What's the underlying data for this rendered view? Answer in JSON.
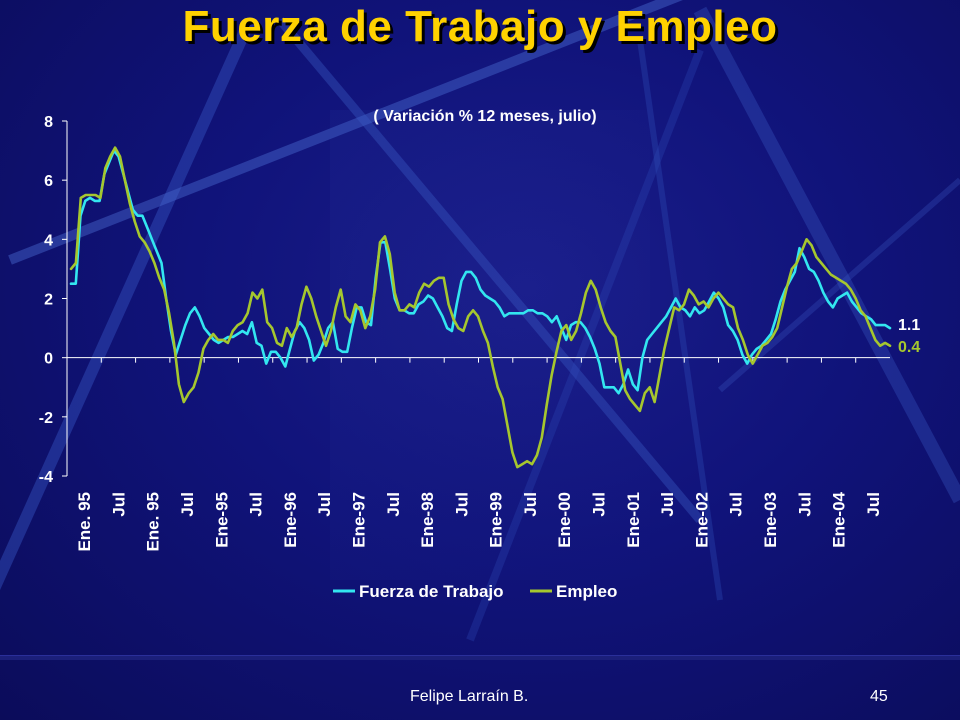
{
  "slide": {
    "title": "Fuerza de Trabajo y Empleo",
    "footer_author": "Felipe Larraín B.",
    "page_number": "45"
  },
  "colors": {
    "background": "#10137a",
    "title": "#ffd200",
    "fuerza": "#33e6f0",
    "empleo": "#a6c72e",
    "text": "#ffffff"
  },
  "chart_data": {
    "type": "line",
    "title": "( Variación % 12 meses, julio)",
    "xlabel": "",
    "ylabel": "",
    "ylim": [
      -4,
      8
    ],
    "yticks": [
      "8",
      "6",
      "4",
      "2",
      "0",
      "-2",
      "-4"
    ],
    "x_tick_labels": [
      "Ene. 95",
      "Jul",
      "Ene. 95",
      "Jul",
      "Ene-95",
      "Jul",
      "Ene-96",
      "Jul",
      "Ene-97",
      "Jul",
      "Ene-98",
      "Jul",
      "Ene-99",
      "Jul",
      "Ene-00",
      "Jul",
      "Ene-01",
      "Jul",
      "Ene-02",
      "Jul",
      "Ene-03",
      "Jul",
      "Ene-04",
      "Jul"
    ],
    "legend_position": "bottom",
    "end_labels": [
      "1.1",
      "0.4"
    ],
    "series": [
      {
        "name": "Fuerza de Trabajo",
        "color": "#33e6f0",
        "values": [
          2.5,
          2.5,
          4.8,
          5.3,
          5.4,
          5.3,
          5.3,
          6.2,
          6.6,
          7.0,
          6.8,
          6.2,
          5.6,
          5.0,
          4.8,
          4.8,
          4.4,
          4.0,
          3.6,
          3.2,
          2.0,
          0.9,
          0.1,
          0.6,
          1.1,
          1.5,
          1.7,
          1.4,
          1.0,
          0.8,
          0.6,
          0.5,
          0.6,
          0.7,
          0.7,
          0.8,
          0.9,
          0.8,
          1.2,
          0.5,
          0.4,
          -0.2,
          0.2,
          0.2,
          0.0,
          -0.3,
          0.3,
          0.9,
          1.2,
          1.0,
          0.6,
          -0.1,
          0.1,
          0.5,
          1.0,
          1.2,
          0.3,
          0.2,
          0.2,
          1.0,
          1.7,
          1.7,
          1.2,
          1.1,
          2.7,
          3.9,
          3.9,
          3.0,
          2.0,
          1.6,
          1.6,
          1.5,
          1.5,
          1.8,
          1.9,
          2.1,
          2.0,
          1.7,
          1.4,
          1.0,
          0.9,
          1.8,
          2.6,
          2.9,
          2.9,
          2.7,
          2.3,
          2.1,
          2.0,
          1.9,
          1.7,
          1.4,
          1.5,
          1.5,
          1.5,
          1.5,
          1.6,
          1.6,
          1.5,
          1.5,
          1.4,
          1.2,
          1.4,
          1.0,
          0.6,
          1.1,
          1.2,
          1.2,
          1.0,
          0.7,
          0.3,
          -0.2,
          -1.0,
          -1.0,
          -1.0,
          -1.2,
          -0.9,
          -0.4,
          -0.9,
          -1.1,
          0.0,
          0.6,
          0.8,
          1.0,
          1.2,
          1.4,
          1.7,
          2.0,
          1.7,
          1.6,
          1.4,
          1.7,
          1.5,
          1.6,
          1.9,
          2.2,
          2.0,
          1.7,
          1.1,
          0.9,
          0.6,
          0.1,
          -0.2,
          0.1,
          0.3,
          0.4,
          0.6,
          0.8,
          1.3,
          1.9,
          2.3,
          2.6,
          2.9,
          3.7,
          3.4,
          3.0,
          2.9,
          2.6,
          2.2,
          1.9,
          1.7,
          2.0,
          2.1,
          2.2,
          1.9,
          1.7,
          1.5,
          1.4,
          1.3,
          1.1,
          1.1,
          1.1,
          1.0
        ]
      },
      {
        "name": "Empleo",
        "color": "#a6c72e",
        "values": [
          3.0,
          3.2,
          5.4,
          5.5,
          5.5,
          5.5,
          5.4,
          6.4,
          6.8,
          7.1,
          6.8,
          6.0,
          5.2,
          4.6,
          4.1,
          3.9,
          3.6,
          3.2,
          2.7,
          2.3,
          1.5,
          0.5,
          -0.9,
          -1.5,
          -1.2,
          -1.0,
          -0.5,
          0.3,
          0.6,
          0.8,
          0.6,
          0.6,
          0.5,
          0.9,
          1.1,
          1.2,
          1.5,
          2.2,
          2.0,
          2.3,
          1.2,
          1.0,
          0.5,
          0.4,
          1.0,
          0.7,
          1.0,
          1.8,
          2.4,
          2.0,
          1.4,
          0.9,
          0.4,
          0.9,
          1.7,
          2.3,
          1.4,
          1.2,
          1.8,
          1.6,
          1.0,
          1.4,
          2.3,
          3.9,
          4.1,
          3.5,
          2.2,
          1.6,
          1.6,
          1.8,
          1.7,
          2.2,
          2.5,
          2.4,
          2.6,
          2.7,
          2.7,
          1.8,
          1.3,
          1.0,
          0.9,
          1.4,
          1.6,
          1.4,
          0.9,
          0.5,
          -0.3,
          -1.0,
          -1.4,
          -2.3,
          -3.2,
          -3.7,
          -3.6,
          -3.5,
          -3.6,
          -3.3,
          -2.7,
          -1.6,
          -0.6,
          0.2,
          0.9,
          1.1,
          0.6,
          0.9,
          1.5,
          2.2,
          2.6,
          2.3,
          1.7,
          1.2,
          0.9,
          0.7,
          -0.2,
          -1.1,
          -1.4,
          -1.6,
          -1.8,
          -1.2,
          -1.0,
          -1.5,
          -0.6,
          0.3,
          1.0,
          1.7,
          1.6,
          1.8,
          2.3,
          2.1,
          1.8,
          1.9,
          1.7,
          2.0,
          2.2,
          2.0,
          1.8,
          1.7,
          1.0,
          0.6,
          0.1,
          -0.2,
          0.1,
          0.4,
          0.5,
          0.7,
          1.0,
          1.7,
          2.4,
          3.0,
          3.2,
          3.6,
          4.0,
          3.8,
          3.4,
          3.2,
          3.0,
          2.8,
          2.7,
          2.6,
          2.5,
          2.3,
          2.0,
          1.6,
          1.4,
          1.0,
          0.6,
          0.4,
          0.5,
          0.4
        ]
      }
    ]
  }
}
